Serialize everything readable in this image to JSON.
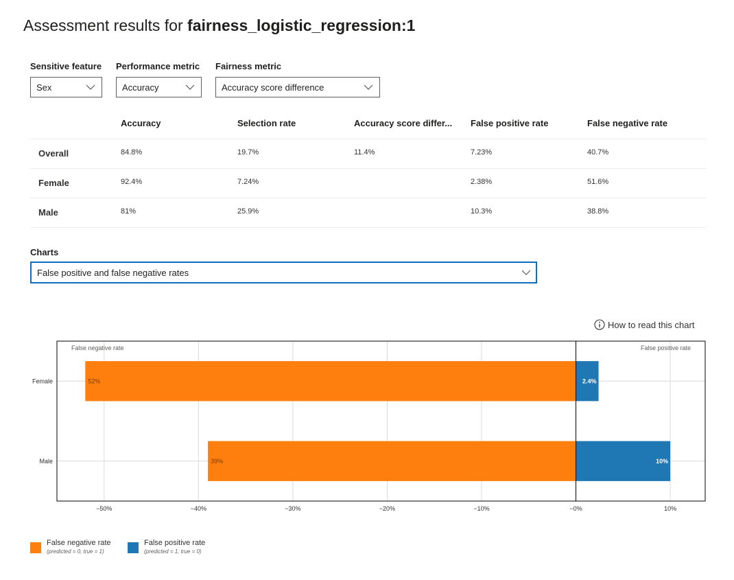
{
  "title": {
    "prefix": "Assessment results for ",
    "model": "fairness_logistic_regression:1"
  },
  "controls": {
    "sensitive_feature": {
      "label": "Sensitive feature",
      "value": "Sex"
    },
    "performance_metric": {
      "label": "Performance metric",
      "value": "Accuracy"
    },
    "fairness_metric": {
      "label": "Fairness metric",
      "value": "Accuracy score difference"
    }
  },
  "table": {
    "headers": [
      "Accuracy",
      "Selection rate",
      "Accuracy score differ...",
      "False positive rate",
      "False negative rate"
    ],
    "rows": [
      {
        "label": "Overall",
        "cells": [
          "84.8%",
          "19.7%",
          "11.4%",
          "7.23%",
          "40.7%"
        ]
      },
      {
        "label": "Female",
        "cells": [
          "92.4%",
          "7.24%",
          "",
          "2.38%",
          "51.6%"
        ]
      },
      {
        "label": "Male",
        "cells": [
          "81%",
          "25.9%",
          "",
          "10.3%",
          "38.8%"
        ]
      }
    ]
  },
  "charts": {
    "label": "Charts",
    "selected": "False positive and false negative rates"
  },
  "how_to_read": "How to read this chart",
  "chart_data": {
    "type": "bar",
    "orientation": "horizontal-diverging",
    "categories": [
      "Female",
      "Male"
    ],
    "series": [
      {
        "name": "False negative rate",
        "values": [
          -52,
          -39
        ],
        "labels": [
          "52%",
          "39%"
        ],
        "color": "#ff7f0e"
      },
      {
        "name": "False positive rate",
        "values": [
          2.4,
          10
        ],
        "labels": [
          "2.4%",
          "10%"
        ],
        "color": "#1f77b4"
      }
    ],
    "corner_labels": {
      "left": "False negative rate",
      "right": "False positive rate"
    },
    "xlim": [
      -55,
      13.7
    ],
    "xticks": [
      -50,
      -40,
      -30,
      -20,
      -10,
      0,
      10
    ],
    "xtick_labels": [
      "−50%",
      "−40%",
      "−30%",
      "−20%",
      "−10%",
      "−0%",
      "10%"
    ],
    "grid": true
  },
  "legend": [
    {
      "label": "False negative rate",
      "sublabel": "(predicted = 0, true = 1)",
      "color": "#ff7f0e"
    },
    {
      "label": "False positive rate",
      "sublabel": "(predicted = 1, true = 0)",
      "color": "#1f77b4"
    }
  ],
  "icons": {
    "chevron": "chevron-down-icon",
    "info": "info-icon"
  }
}
